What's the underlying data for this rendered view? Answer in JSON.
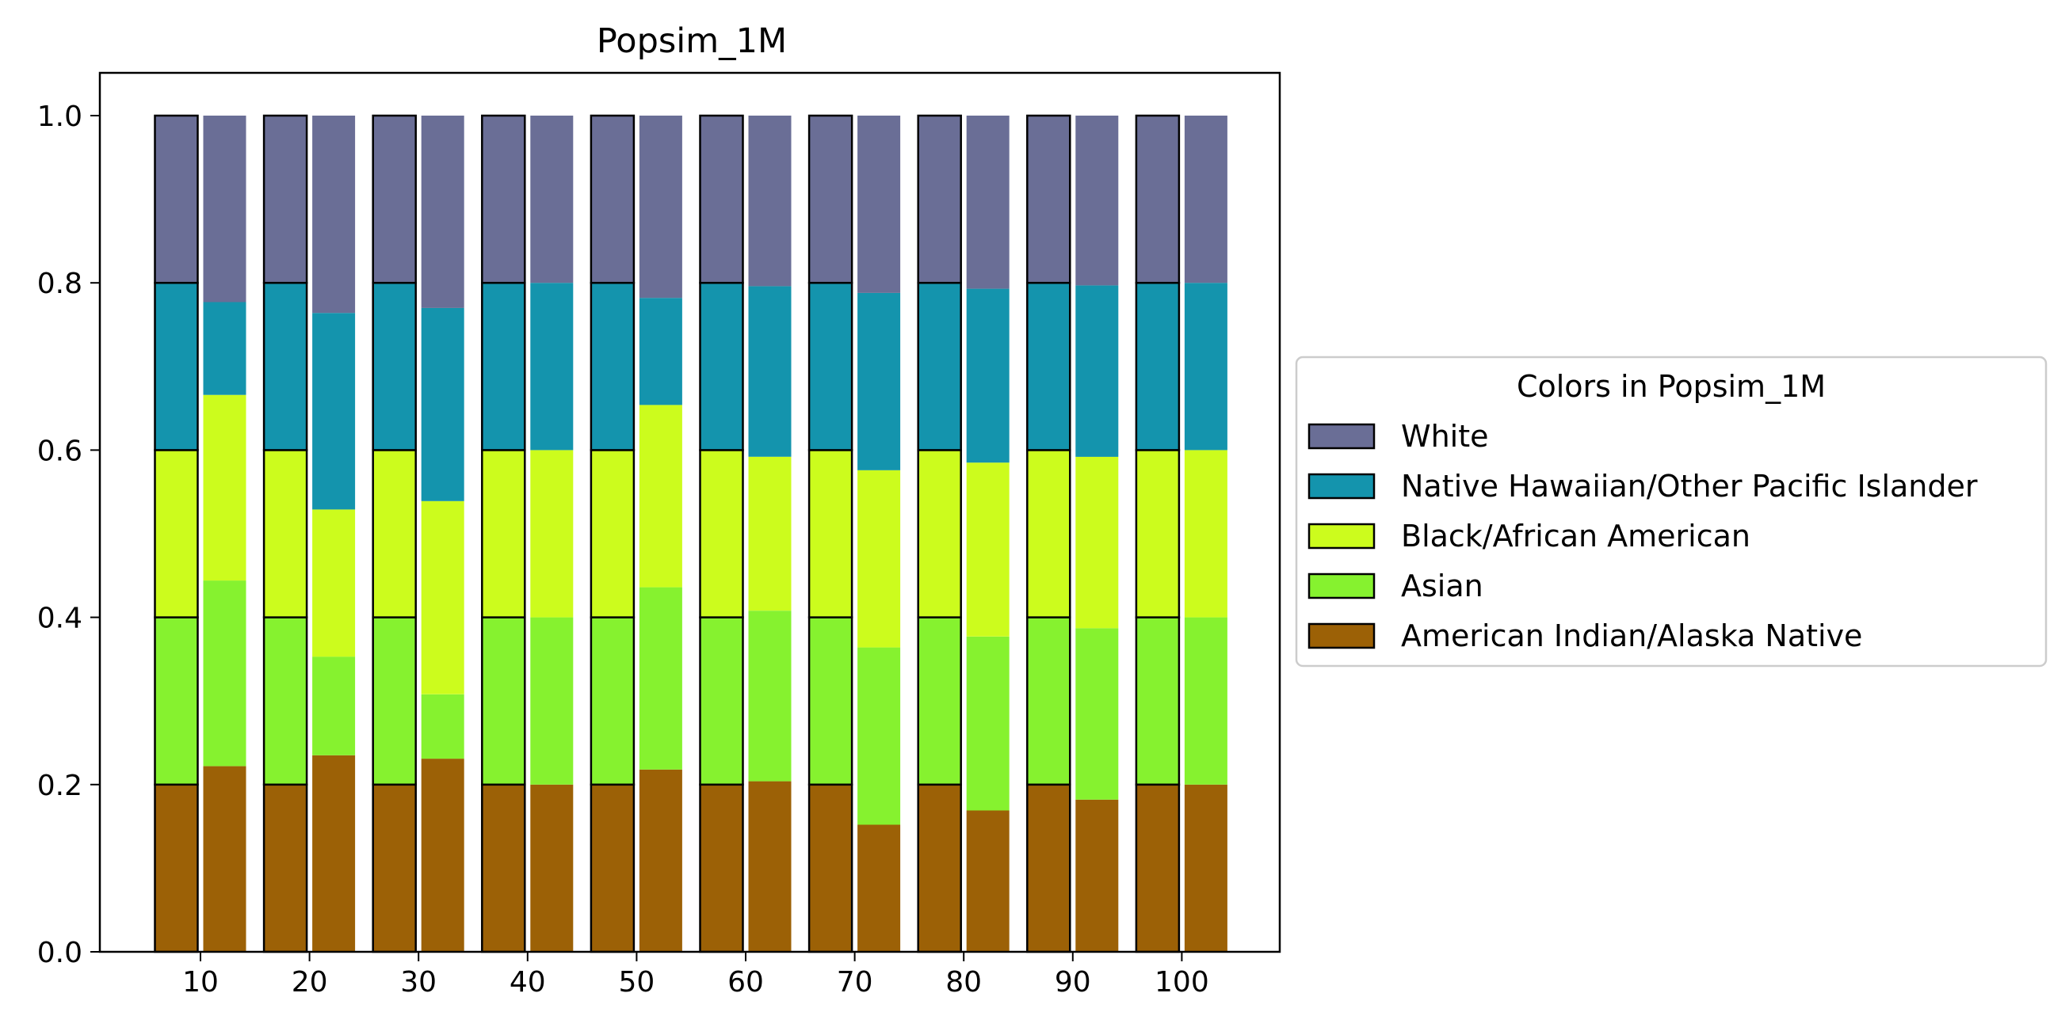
{
  "chart_data": {
    "type": "bar",
    "stacked": true,
    "title": "Popsim_1M",
    "xlabel": "",
    "ylabel": "",
    "categories": [
      "10",
      "20",
      "30",
      "40",
      "50",
      "60",
      "70",
      "80",
      "90",
      "100"
    ],
    "ylim": [
      0,
      1.05
    ],
    "yticks": [
      "0.0",
      "0.2",
      "0.4",
      "0.6",
      "0.8",
      "1.0"
    ],
    "grid": false,
    "groups": [
      {
        "edge": "black",
        "series": [
          {
            "name": "American Indian/Alaska Native",
            "color": "#9c6106",
            "values": [
              0.2,
              0.2,
              0.2,
              0.2,
              0.2,
              0.2,
              0.2,
              0.2,
              0.2,
              0.2
            ]
          },
          {
            "name": "Asian",
            "color": "#86f22f",
            "values": [
              0.2,
              0.2,
              0.2,
              0.2,
              0.2,
              0.2,
              0.2,
              0.2,
              0.2,
              0.2
            ]
          },
          {
            "name": "Black/African American",
            "color": "#ccfc1d",
            "values": [
              0.2,
              0.2,
              0.2,
              0.2,
              0.2,
              0.2,
              0.2,
              0.2,
              0.2,
              0.2
            ]
          },
          {
            "name": "Native Hawaiian/Other Pacific Islander",
            "color": "#1494ad",
            "values": [
              0.2,
              0.2,
              0.2,
              0.2,
              0.2,
              0.2,
              0.2,
              0.2,
              0.2,
              0.2
            ]
          },
          {
            "name": "White",
            "color": "#6a6e96",
            "values": [
              0.2,
              0.2,
              0.2,
              0.2,
              0.2,
              0.2,
              0.2,
              0.2,
              0.2,
              0.2
            ]
          }
        ]
      },
      {
        "edge": "none",
        "series": [
          {
            "name": "American Indian/Alaska Native",
            "color": "#9c6106",
            "values": [
              0.222,
              0.235,
              0.231,
              0.2,
              0.218,
              0.204,
              0.152,
              0.169,
              0.182,
              0.2
            ]
          },
          {
            "name": "Asian",
            "color": "#86f22f",
            "values": [
              0.222,
              0.118,
              0.077,
              0.2,
              0.218,
              0.204,
              0.212,
              0.208,
              0.205,
              0.2
            ]
          },
          {
            "name": "Black/African American",
            "color": "#ccfc1d",
            "values": [
              0.222,
              0.176,
              0.231,
              0.2,
              0.218,
              0.184,
              0.212,
              0.208,
              0.205,
              0.2
            ]
          },
          {
            "name": "Native Hawaiian/Other Pacific Islander",
            "color": "#1494ad",
            "values": [
              0.111,
              0.235,
              0.231,
              0.2,
              0.128,
              0.204,
              0.212,
              0.208,
              0.205,
              0.2
            ]
          },
          {
            "name": "White",
            "color": "#6a6e96",
            "values": [
              0.223,
              0.236,
              0.23,
              0.2,
              0.218,
              0.204,
              0.212,
              0.207,
              0.203,
              0.2
            ]
          }
        ]
      }
    ],
    "legend": {
      "title": "Colors in Popsim_1M",
      "placement": "right",
      "entries": [
        {
          "label": "White",
          "color": "#6a6e96"
        },
        {
          "label": "Native Hawaiian/Other Pacific Islander",
          "color": "#1494ad"
        },
        {
          "label": "Black/African American",
          "color": "#ccfc1d"
        },
        {
          "label": "Asian",
          "color": "#86f22f"
        },
        {
          "label": "American Indian/Alaska Native",
          "color": "#9c6106"
        }
      ]
    }
  }
}
